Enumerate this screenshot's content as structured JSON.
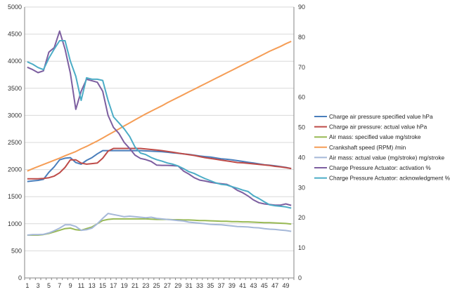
{
  "chart_data": {
    "type": "line",
    "title": "",
    "xlabel": "",
    "ylabel": "",
    "y2label": "",
    "grid": "horizontal",
    "legend_position": "right",
    "x": [
      1,
      2,
      3,
      4,
      5,
      6,
      7,
      8,
      9,
      10,
      11,
      12,
      13,
      14,
      15,
      16,
      17,
      18,
      19,
      20,
      21,
      22,
      23,
      24,
      25,
      26,
      27,
      28,
      29,
      30,
      31,
      32,
      33,
      34,
      35,
      36,
      37,
      38,
      39,
      40,
      41,
      42,
      43,
      44,
      45,
      46,
      47,
      48,
      49,
      50
    ],
    "x_tick_labels": [
      "1",
      "3",
      "5",
      "7",
      "9",
      "11",
      "13",
      "15",
      "17",
      "19",
      "21",
      "23",
      "25",
      "27",
      "29",
      "31",
      "33",
      "35",
      "37",
      "39",
      "41",
      "43",
      "45",
      "47",
      "49"
    ],
    "ylim": [
      0,
      5000
    ],
    "y_ticks": [
      "0",
      "500",
      "1000",
      "1500",
      "2000",
      "2500",
      "3000",
      "3500",
      "4000",
      "4500",
      "5000"
    ],
    "y2lim": [
      0,
      90
    ],
    "y2_ticks": [
      "0",
      "10",
      "20",
      "30",
      "40",
      "50",
      "60",
      "70",
      "80",
      "90"
    ],
    "series": [
      {
        "name": "Charge air pressure specified value  hPa",
        "color": "#4a7ebb",
        "axis": "left",
        "values": [
          1780,
          1790,
          1800,
          1820,
          1950,
          2050,
          2180,
          2210,
          2220,
          2130,
          2100,
          2170,
          2220,
          2290,
          2350,
          2350,
          2350,
          2350,
          2350,
          2350,
          2350,
          2350,
          2345,
          2340,
          2335,
          2330,
          2320,
          2310,
          2300,
          2290,
          2280,
          2265,
          2250,
          2240,
          2230,
          2215,
          2200,
          2190,
          2180,
          2165,
          2150,
          2135,
          2120,
          2105,
          2090,
          2080,
          2070,
          2055,
          2040,
          2020
        ]
      },
      {
        "name": "Charge air pressure: actual value  hPa",
        "color": "#be4b48",
        "axis": "left",
        "values": [
          1830,
          1830,
          1830,
          1835,
          1850,
          1880,
          1940,
          2040,
          2180,
          2180,
          2120,
          2100,
          2110,
          2120,
          2210,
          2340,
          2390,
          2390,
          2390,
          2390,
          2390,
          2390,
          2380,
          2370,
          2360,
          2350,
          2335,
          2320,
          2305,
          2290,
          2275,
          2260,
          2240,
          2220,
          2205,
          2190,
          2175,
          2160,
          2145,
          2130,
          2125,
          2115,
          2105,
          2095,
          2085,
          2075,
          2060,
          2050,
          2035,
          2020
        ]
      },
      {
        "name": "Air mass: specified value  mg/stroke",
        "color": "#98b954",
        "axis": "left",
        "values": [
          790,
          790,
          790,
          800,
          820,
          850,
          880,
          910,
          920,
          890,
          880,
          910,
          940,
          1000,
          1060,
          1080,
          1090,
          1090,
          1090,
          1090,
          1090,
          1090,
          1090,
          1085,
          1080,
          1080,
          1080,
          1075,
          1075,
          1070,
          1070,
          1065,
          1060,
          1060,
          1055,
          1050,
          1045,
          1045,
          1040,
          1040,
          1035,
          1035,
          1030,
          1025,
          1020,
          1020,
          1015,
          1010,
          1005,
          995
        ]
      },
      {
        "name": "Crankshaft speed (RPM)  /min",
        "color": "#f59d56",
        "axis": "right",
        "values": [
          35.5,
          36.3,
          37.0,
          37.7,
          38.4,
          39.1,
          39.8,
          40.6,
          41.3,
          42.0,
          42.9,
          43.7,
          44.6,
          45.5,
          46.5,
          47.5,
          48.5,
          49.5,
          50.5,
          51.5,
          52.5,
          53.5,
          54.5,
          55.4,
          56.3,
          57.2,
          58.2,
          59.1,
          60.0,
          60.9,
          61.8,
          62.7,
          63.6,
          64.5,
          65.4,
          66.3,
          67.2,
          68.1,
          69.0,
          69.9,
          70.8,
          71.7,
          72.6,
          73.5,
          74.4,
          75.3,
          76.1,
          76.9,
          77.8,
          78.6
        ]
      },
      {
        "name": "Air mass: actual value (mg/stroke)  mg/stroke",
        "color": "#a5b8d8",
        "axis": "left",
        "values": [
          790,
          800,
          800,
          805,
          830,
          870,
          920,
          980,
          980,
          950,
          880,
          890,
          920,
          1000,
          1100,
          1190,
          1170,
          1150,
          1130,
          1140,
          1130,
          1120,
          1110,
          1120,
          1100,
          1090,
          1080,
          1070,
          1060,
          1050,
          1030,
          1020,
          1010,
          1000,
          990,
          985,
          980,
          970,
          960,
          950,
          945,
          940,
          930,
          925,
          910,
          900,
          895,
          885,
          875,
          860
        ]
      },
      {
        "name": "Charge Pressure Actuator: activation  %",
        "color": "#7d5fa0",
        "axis": "right",
        "values": [
          70,
          69.2,
          68.2,
          68.8,
          75,
          76.5,
          82,
          76,
          68,
          56,
          62,
          66,
          65.5,
          65,
          62,
          54,
          50,
          48,
          45,
          43,
          40.8,
          39.7,
          39.3,
          38.7,
          37.5,
          37.4,
          37.4,
          37.3,
          37.2,
          35.5,
          34.5,
          33.3,
          32.5,
          32.2,
          31.8,
          31.5,
          31.3,
          31.1,
          30.3,
          29.1,
          28.3,
          27.2,
          25.9,
          25.0,
          24.6,
          24.4,
          24.2,
          24.2,
          24.6,
          24.1
        ]
      },
      {
        "name": "Charge Pressure Actuator: acknowledgment  %",
        "color": "#4bacc6",
        "axis": "right",
        "values": [
          71.8,
          71.0,
          69.9,
          69.2,
          73,
          76,
          78.8,
          78.8,
          72,
          67,
          59,
          66.5,
          66,
          66,
          65.6,
          59,
          53.5,
          51.5,
          49.5,
          47,
          43.5,
          41.5,
          41,
          40,
          39.3,
          38.8,
          38.2,
          37.8,
          37.2,
          36.3,
          35.3,
          34.7,
          33.8,
          33,
          32.3,
          31.6,
          31.1,
          30.9,
          30.3,
          29.8,
          29.2,
          28.7,
          27.3,
          26.4,
          25.3,
          24.3,
          24.0,
          23.8,
          23.6,
          23.2
        ]
      }
    ]
  }
}
